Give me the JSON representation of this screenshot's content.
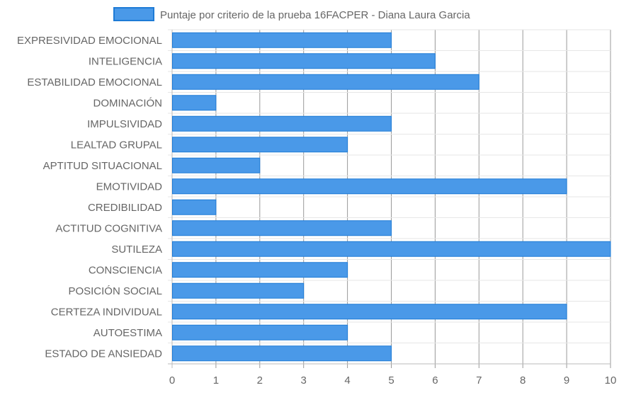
{
  "chart_data": {
    "type": "bar",
    "orientation": "horizontal",
    "series": [
      {
        "name": "Puntaje por criterio de la prueba 16FACPER - Diana Laura Garcia",
        "color": "#4a99e8",
        "border_color": "#1e7bd6",
        "values": [
          5,
          6,
          7,
          1,
          5,
          4,
          2,
          9,
          1,
          5,
          10,
          4,
          3,
          9,
          4,
          5
        ]
      }
    ],
    "categories": [
      "EXPRESIVIDAD EMOCIONAL",
      "INTELIGENCIA",
      "ESTABILIDAD EMOCIONAL",
      "DOMINACIÓN",
      "IMPULSIVIDAD",
      "LEALTAD GRUPAL",
      "APTITUD SITUACIONAL",
      "EMOTIVIDAD",
      "CREDIBILIDAD",
      "ACTITUD COGNITIVA",
      "SUTILEZA",
      "CONSCIENCIA",
      "POSICIÓN SOCIAL",
      "CERTEZA INDIVIDUAL",
      "AUTOESTIMA",
      "ESTADO DE ANSIEDAD"
    ],
    "xlim": [
      0,
      10
    ],
    "x_ticks": [
      "0",
      "1",
      "2",
      "3",
      "4",
      "5",
      "6",
      "7",
      "8",
      "9",
      "10"
    ],
    "grid": true,
    "legend_position": "top-center",
    "title": "",
    "xlabel": "",
    "ylabel": ""
  }
}
